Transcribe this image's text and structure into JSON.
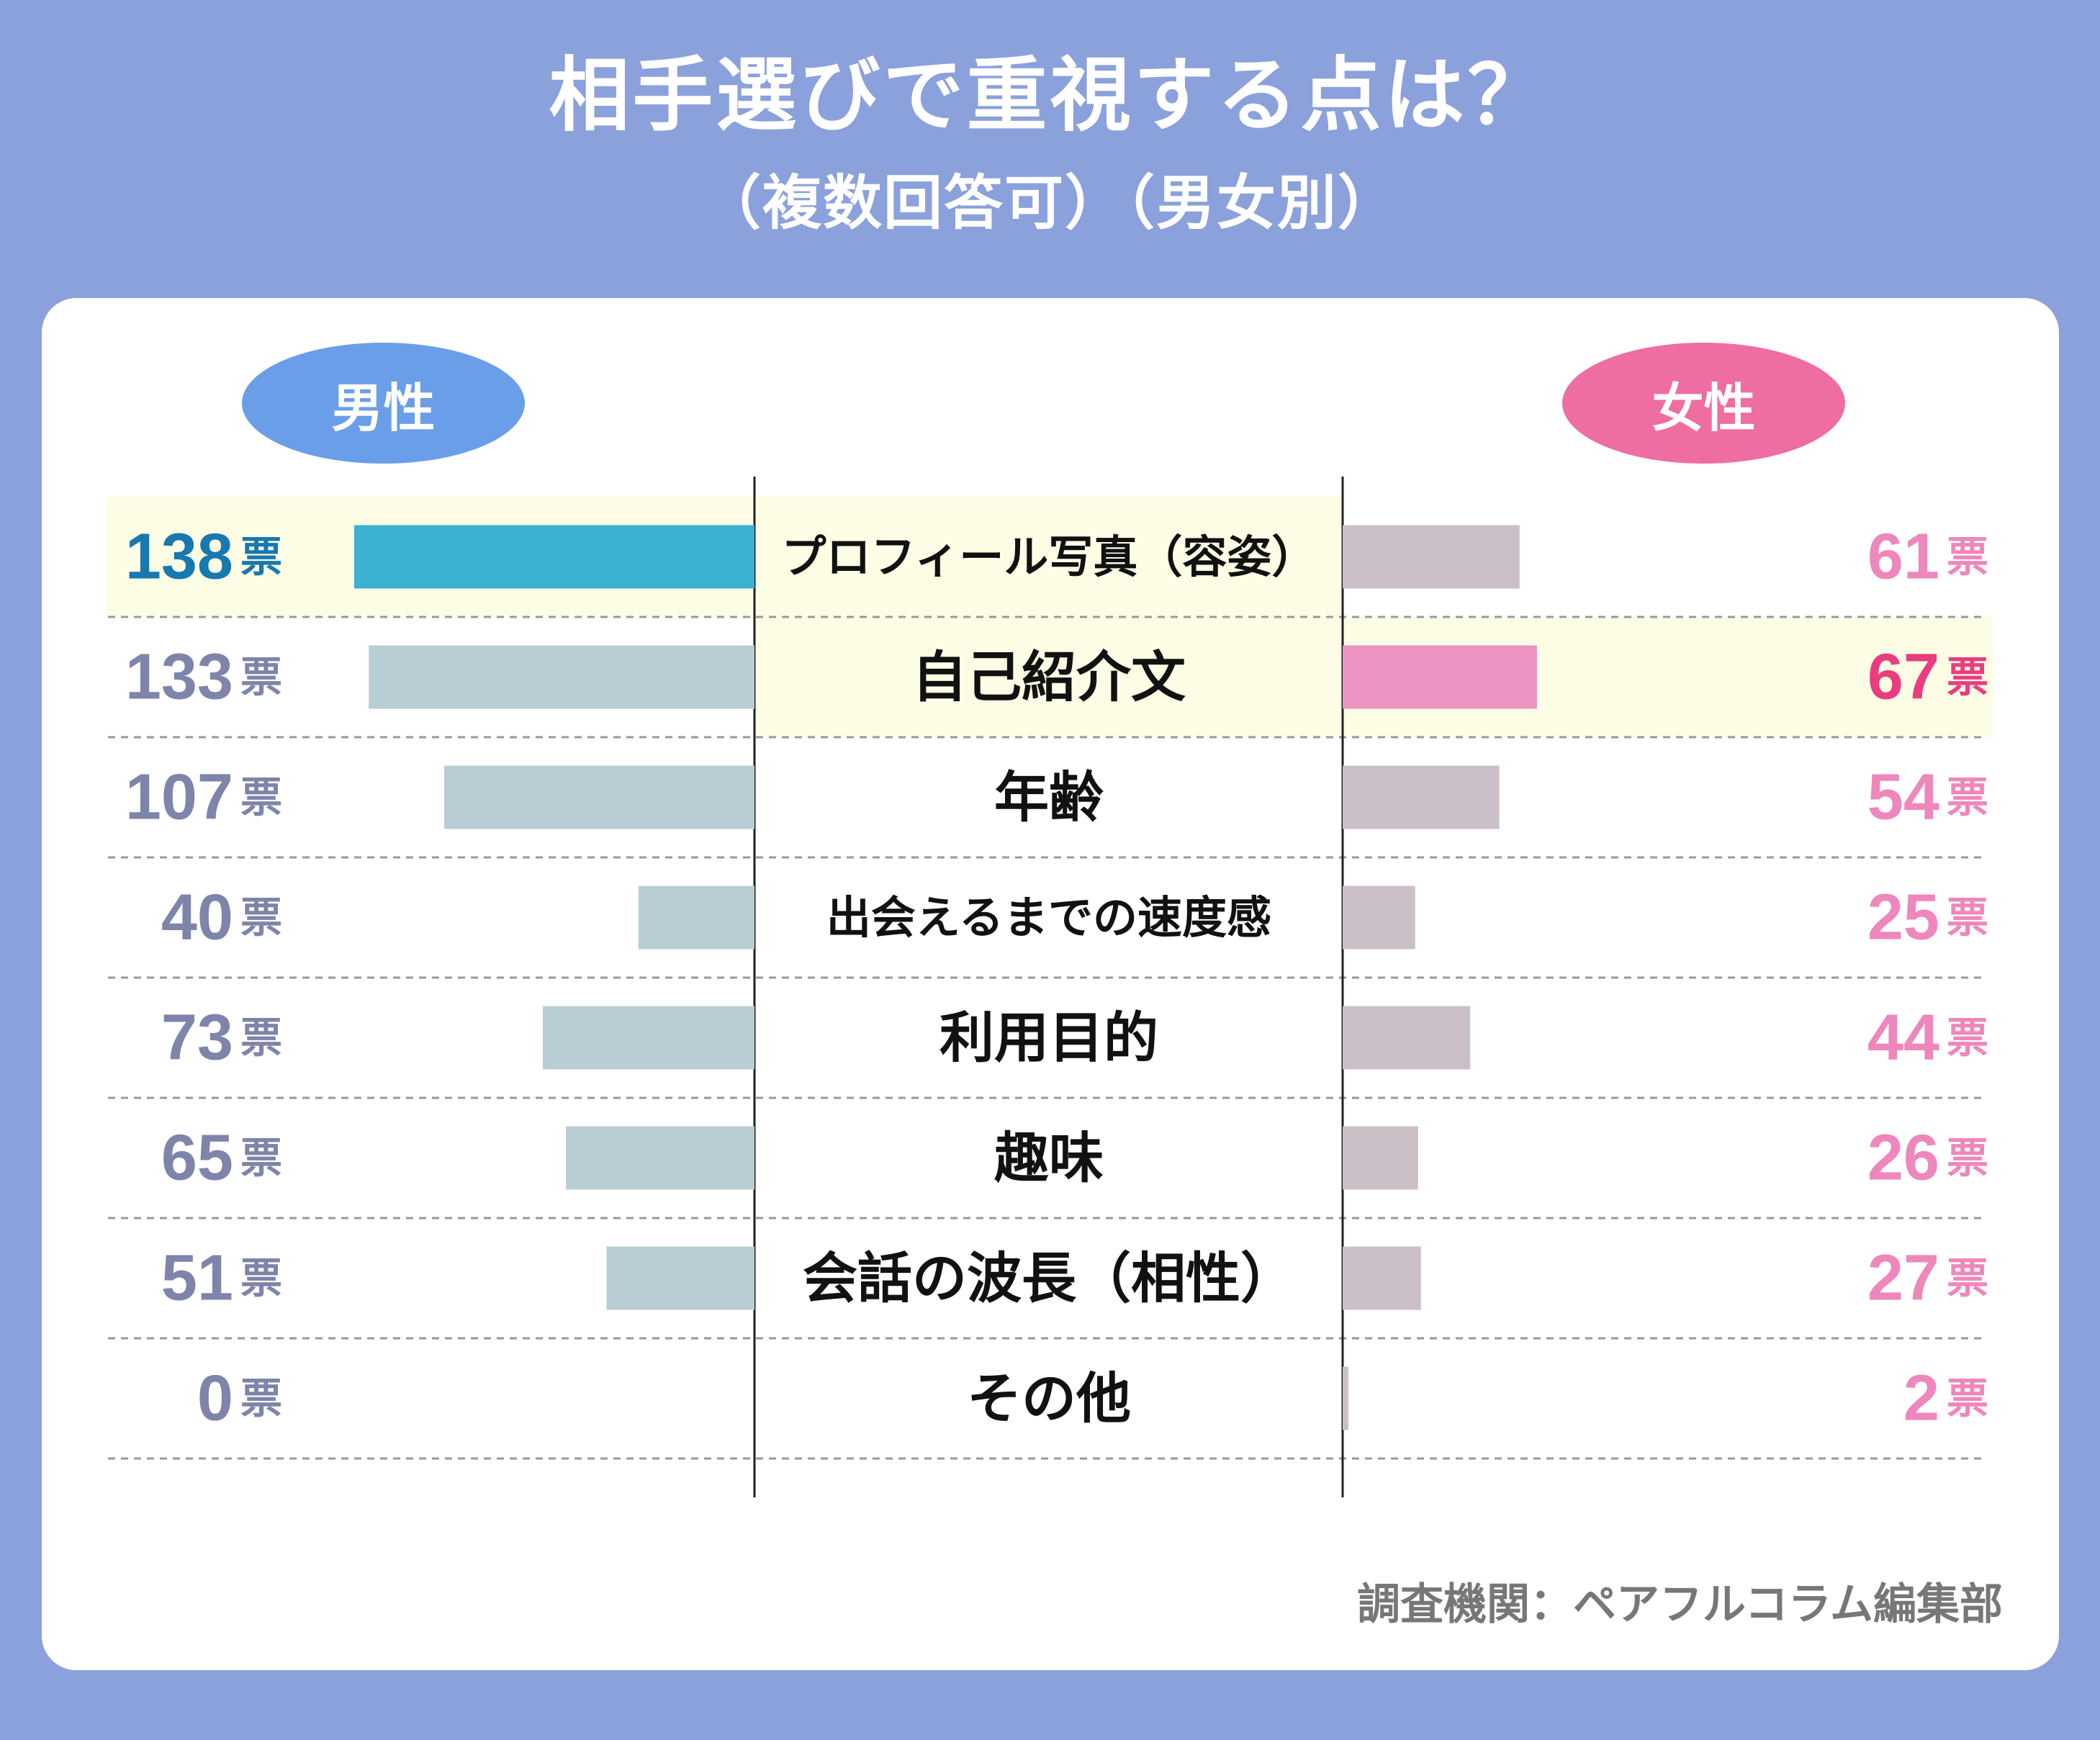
{
  "title": "相手選びで重視する点は？",
  "subtitle": "（複数回答可）（男女別）",
  "legend": {
    "male": "男性",
    "female": "女性"
  },
  "source": "調査機関：ペアフルコラム編集部",
  "colors": {
    "background": "#8ba1dc",
    "male_highlight_bar": "#3ab1d1",
    "male_bar": "#b9ced4",
    "female_highlight_bar": "#ec93c1",
    "female_bar": "#ccc0c8",
    "male_highlight_text": "#1878b0",
    "male_text": "#7f84aa",
    "female_highlight_text": "#e93d7f",
    "female_text": "#ee87bc",
    "highlight_row": "#fdfde6"
  },
  "chart_data": {
    "type": "bar",
    "unit": "票",
    "categories": [
      "プロフィール写真（容姿）",
      "自己紹介文",
      "年齢",
      "出会えるまでの速度感",
      "利用目的",
      "趣味",
      "会話の波長（相性）",
      "その他"
    ],
    "series": [
      {
        "name": "男性",
        "values": [
          138,
          133,
          107,
          40,
          73,
          65,
          51,
          0
        ],
        "highlight_index": 0
      },
      {
        "name": "女性",
        "values": [
          61,
          67,
          54,
          25,
          44,
          26,
          27,
          2
        ],
        "highlight_index": 1
      }
    ]
  }
}
